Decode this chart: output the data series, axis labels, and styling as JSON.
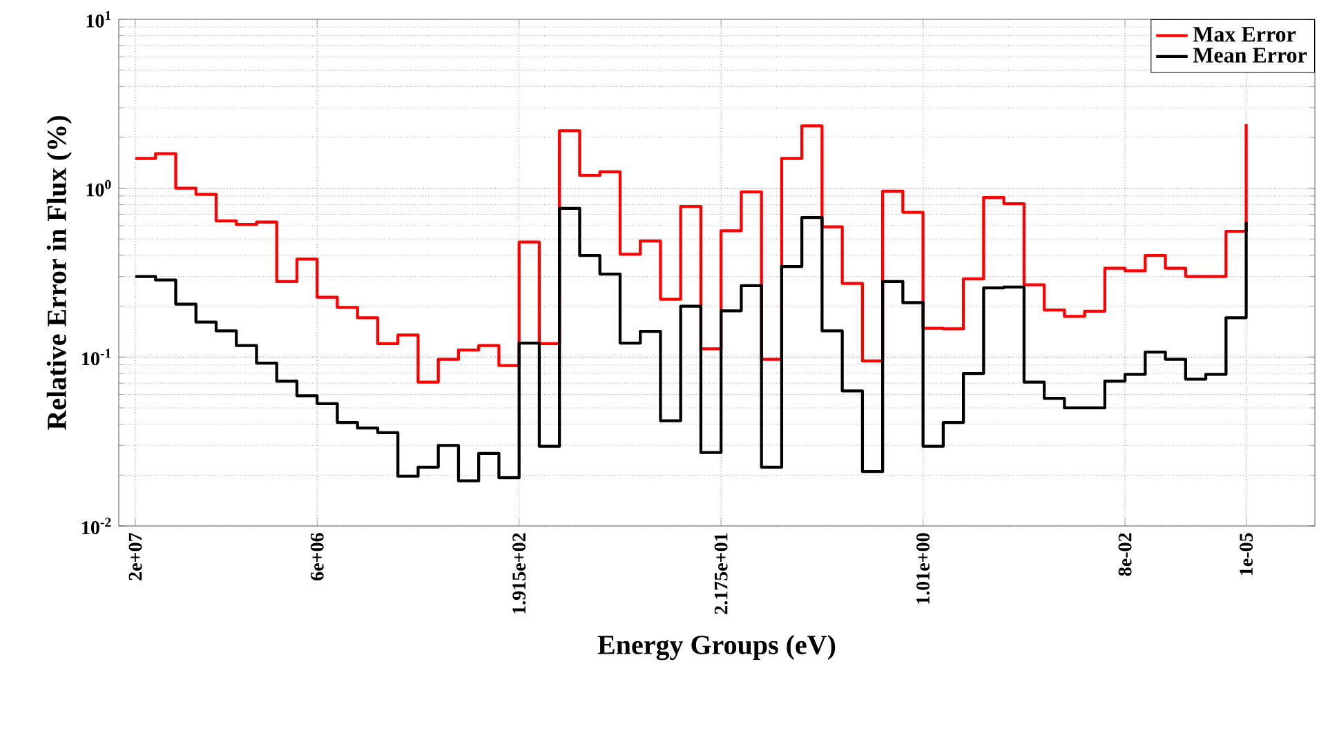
{
  "chart_data": {
    "type": "step",
    "xlabel": "Energy Groups (eV)",
    "ylabel": "Relative Error in Flux (%)",
    "categories": [
      "2e+07",
      null,
      null,
      null,
      null,
      null,
      null,
      null,
      null,
      "6e+06",
      null,
      null,
      null,
      null,
      null,
      null,
      null,
      null,
      null,
      "1.915e+02",
      null,
      null,
      null,
      null,
      null,
      null,
      null,
      null,
      null,
      "2.175e+01",
      null,
      null,
      null,
      null,
      null,
      null,
      null,
      null,
      null,
      "1.01e+00",
      null,
      null,
      null,
      null,
      null,
      null,
      null,
      null,
      null,
      "8e-02",
      null,
      null,
      null,
      null,
      null,
      "1e-05"
    ],
    "series": [
      {
        "name": "Max Error",
        "color": "#ff0000",
        "values": [
          1.5,
          1.6,
          1.0,
          0.92,
          0.64,
          0.61,
          0.63,
          0.28,
          0.38,
          0.226,
          0.197,
          0.171,
          0.12,
          0.135,
          0.071,
          0.097,
          0.11,
          0.117,
          0.089,
          0.48,
          0.12,
          2.19,
          1.19,
          1.25,
          0.406,
          0.487,
          0.22,
          0.78,
          0.112,
          0.56,
          0.95,
          0.097,
          1.5,
          2.34,
          0.59,
          0.273,
          0.095,
          0.96,
          0.72,
          0.148,
          0.147,
          0.29,
          0.88,
          0.81,
          0.268,
          0.19,
          0.174,
          0.187,
          0.336,
          0.324,
          0.4,
          0.336,
          0.3,
          0.3,
          0.555,
          2.4
        ]
      },
      {
        "name": "Mean Error",
        "color": "#000000",
        "values": [
          0.3,
          0.286,
          0.206,
          0.161,
          0.143,
          0.117,
          0.092,
          0.072,
          0.059,
          0.053,
          0.041,
          0.038,
          0.0357,
          0.0197,
          0.0223,
          0.03,
          0.0185,
          0.0269,
          0.0193,
          0.121,
          0.0296,
          0.76,
          0.4,
          0.31,
          0.121,
          0.142,
          0.042,
          0.2,
          0.0272,
          0.188,
          0.265,
          0.0223,
          0.344,
          0.67,
          0.143,
          0.063,
          0.021,
          0.28,
          0.21,
          0.0296,
          0.041,
          0.08,
          0.257,
          0.26,
          0.071,
          0.057,
          0.05,
          0.05,
          0.072,
          0.079,
          0.107,
          0.097,
          0.074,
          0.079,
          0.171,
          0.63
        ]
      }
    ],
    "ylim": [
      0.01,
      10
    ],
    "yticks": [
      {
        "value": 0.01,
        "label": "10$^{-2}$"
      },
      {
        "value": 0.1,
        "label": "10$^{-1}$"
      },
      {
        "value": 1,
        "label": "10$^{0}$"
      },
      {
        "value": 10,
        "label": "10$^{1}$"
      }
    ],
    "log": true,
    "grid": true,
    "legend": "top right"
  }
}
